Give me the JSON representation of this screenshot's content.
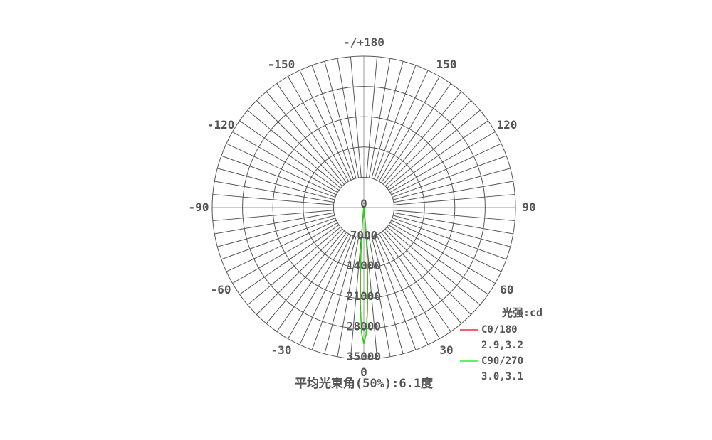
{
  "chart_data": {
    "type": "polar",
    "title": "平均光束角(50%):6.1度",
    "unit_label": "光强:cd",
    "radial_range": [
      0,
      35000
    ],
    "radial_ticks": [
      "0",
      "7000",
      "14000",
      "21000",
      "28000",
      "35000"
    ],
    "radial_tick_values": [
      0,
      7000,
      14000,
      21000,
      28000,
      35000
    ],
    "angle_ticks": [
      "0",
      "30",
      "60",
      "90",
      "120",
      "150",
      "-/+180",
      "-150",
      "-120",
      "-90",
      "-60",
      "-30"
    ],
    "angle_tick_values": [
      0,
      30,
      60,
      90,
      120,
      150,
      180,
      -150,
      -120,
      -90,
      -60,
      -30
    ],
    "angular_grid_step_deg": 5,
    "grid": true,
    "legend_position": "bottom-right",
    "series": [
      {
        "name": "C0/180",
        "beam_angles": "2.9,3.2",
        "color": "#ff0000",
        "angles": [
          -10,
          -8,
          -6,
          -5,
          -4,
          -3,
          -2,
          -1,
          0,
          1,
          2,
          3,
          4,
          5,
          6,
          8,
          10
        ],
        "values": [
          20,
          160,
          1620,
          4010,
          8440,
          15000,
          22650,
          29000,
          31500,
          29400,
          24000,
          17100,
          10700,
          5800,
          2740,
          410,
          20
        ]
      },
      {
        "name": "C90/270",
        "beam_angles": "3.0,3.1",
        "color": "#00ee00",
        "angles": [
          -10,
          -8,
          -6,
          -5,
          -4,
          -3,
          -2,
          -1,
          0,
          1,
          2,
          3,
          4,
          5,
          6,
          8,
          10
        ],
        "values": [
          20,
          230,
          1970,
          4590,
          9170,
          15750,
          23150,
          29200,
          31500,
          29300,
          23600,
          16450,
          9930,
          5200,
          2340,
          310,
          20
        ]
      }
    ]
  }
}
